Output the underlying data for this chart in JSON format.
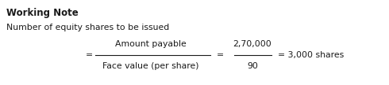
{
  "title": "Working Note",
  "line1": "Number of equity shares to be issued",
  "equals1": "=",
  "numerator": "Amount payable",
  "denominator": "Face value (per share)",
  "equals2": "=",
  "num_value": "2,70,000",
  "den_value": "90",
  "result": "= 3,000 shares",
  "bg_color": "#ffffff",
  "text_color": "#1a1a1a",
  "title_fontsize": 8.5,
  "body_fontsize": 7.8
}
